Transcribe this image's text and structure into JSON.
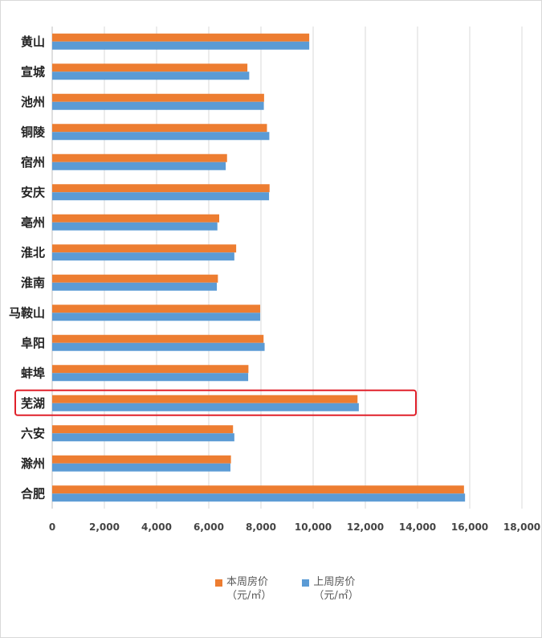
{
  "chart_data": {
    "type": "bar",
    "orientation": "horizontal",
    "categories": [
      "黄山",
      "宣城",
      "池州",
      "铜陵",
      "宿州",
      "安庆",
      "亳州",
      "淮北",
      "淮南",
      "马鞍山",
      "阜阳",
      "蚌埠",
      "芜湖",
      "六安",
      "滁州",
      "合肥"
    ],
    "series": [
      {
        "name": "本周房价（元/㎡）",
        "legend_line1": "本周房价",
        "legend_line2": "（元/㎡）",
        "color": "#ED7D31",
        "values": [
          9850,
          7480,
          8120,
          8230,
          6700,
          8330,
          6400,
          7050,
          6350,
          7970,
          8100,
          7520,
          11700,
          6930,
          6850,
          15780
        ]
      },
      {
        "name": "上周房价（元/㎡）",
        "legend_line1": "上周房价",
        "legend_line2": "（元/㎡）",
        "color": "#5B9BD5",
        "values": [
          9850,
          7550,
          8110,
          8320,
          6650,
          8310,
          6330,
          6980,
          6310,
          7970,
          8140,
          7510,
          11750,
          6980,
          6830,
          15820
        ]
      }
    ],
    "x_ticks": [
      "0",
      "2,000",
      "4,000",
      "6,000",
      "8,000",
      "10,000",
      "12,000",
      "14,000",
      "16,000",
      "18,000"
    ],
    "xlim": [
      0,
      18000
    ],
    "grid": "vertical",
    "legend": "bottom",
    "highlight_category": "芜湖",
    "highlight_color": "#E0202A"
  }
}
